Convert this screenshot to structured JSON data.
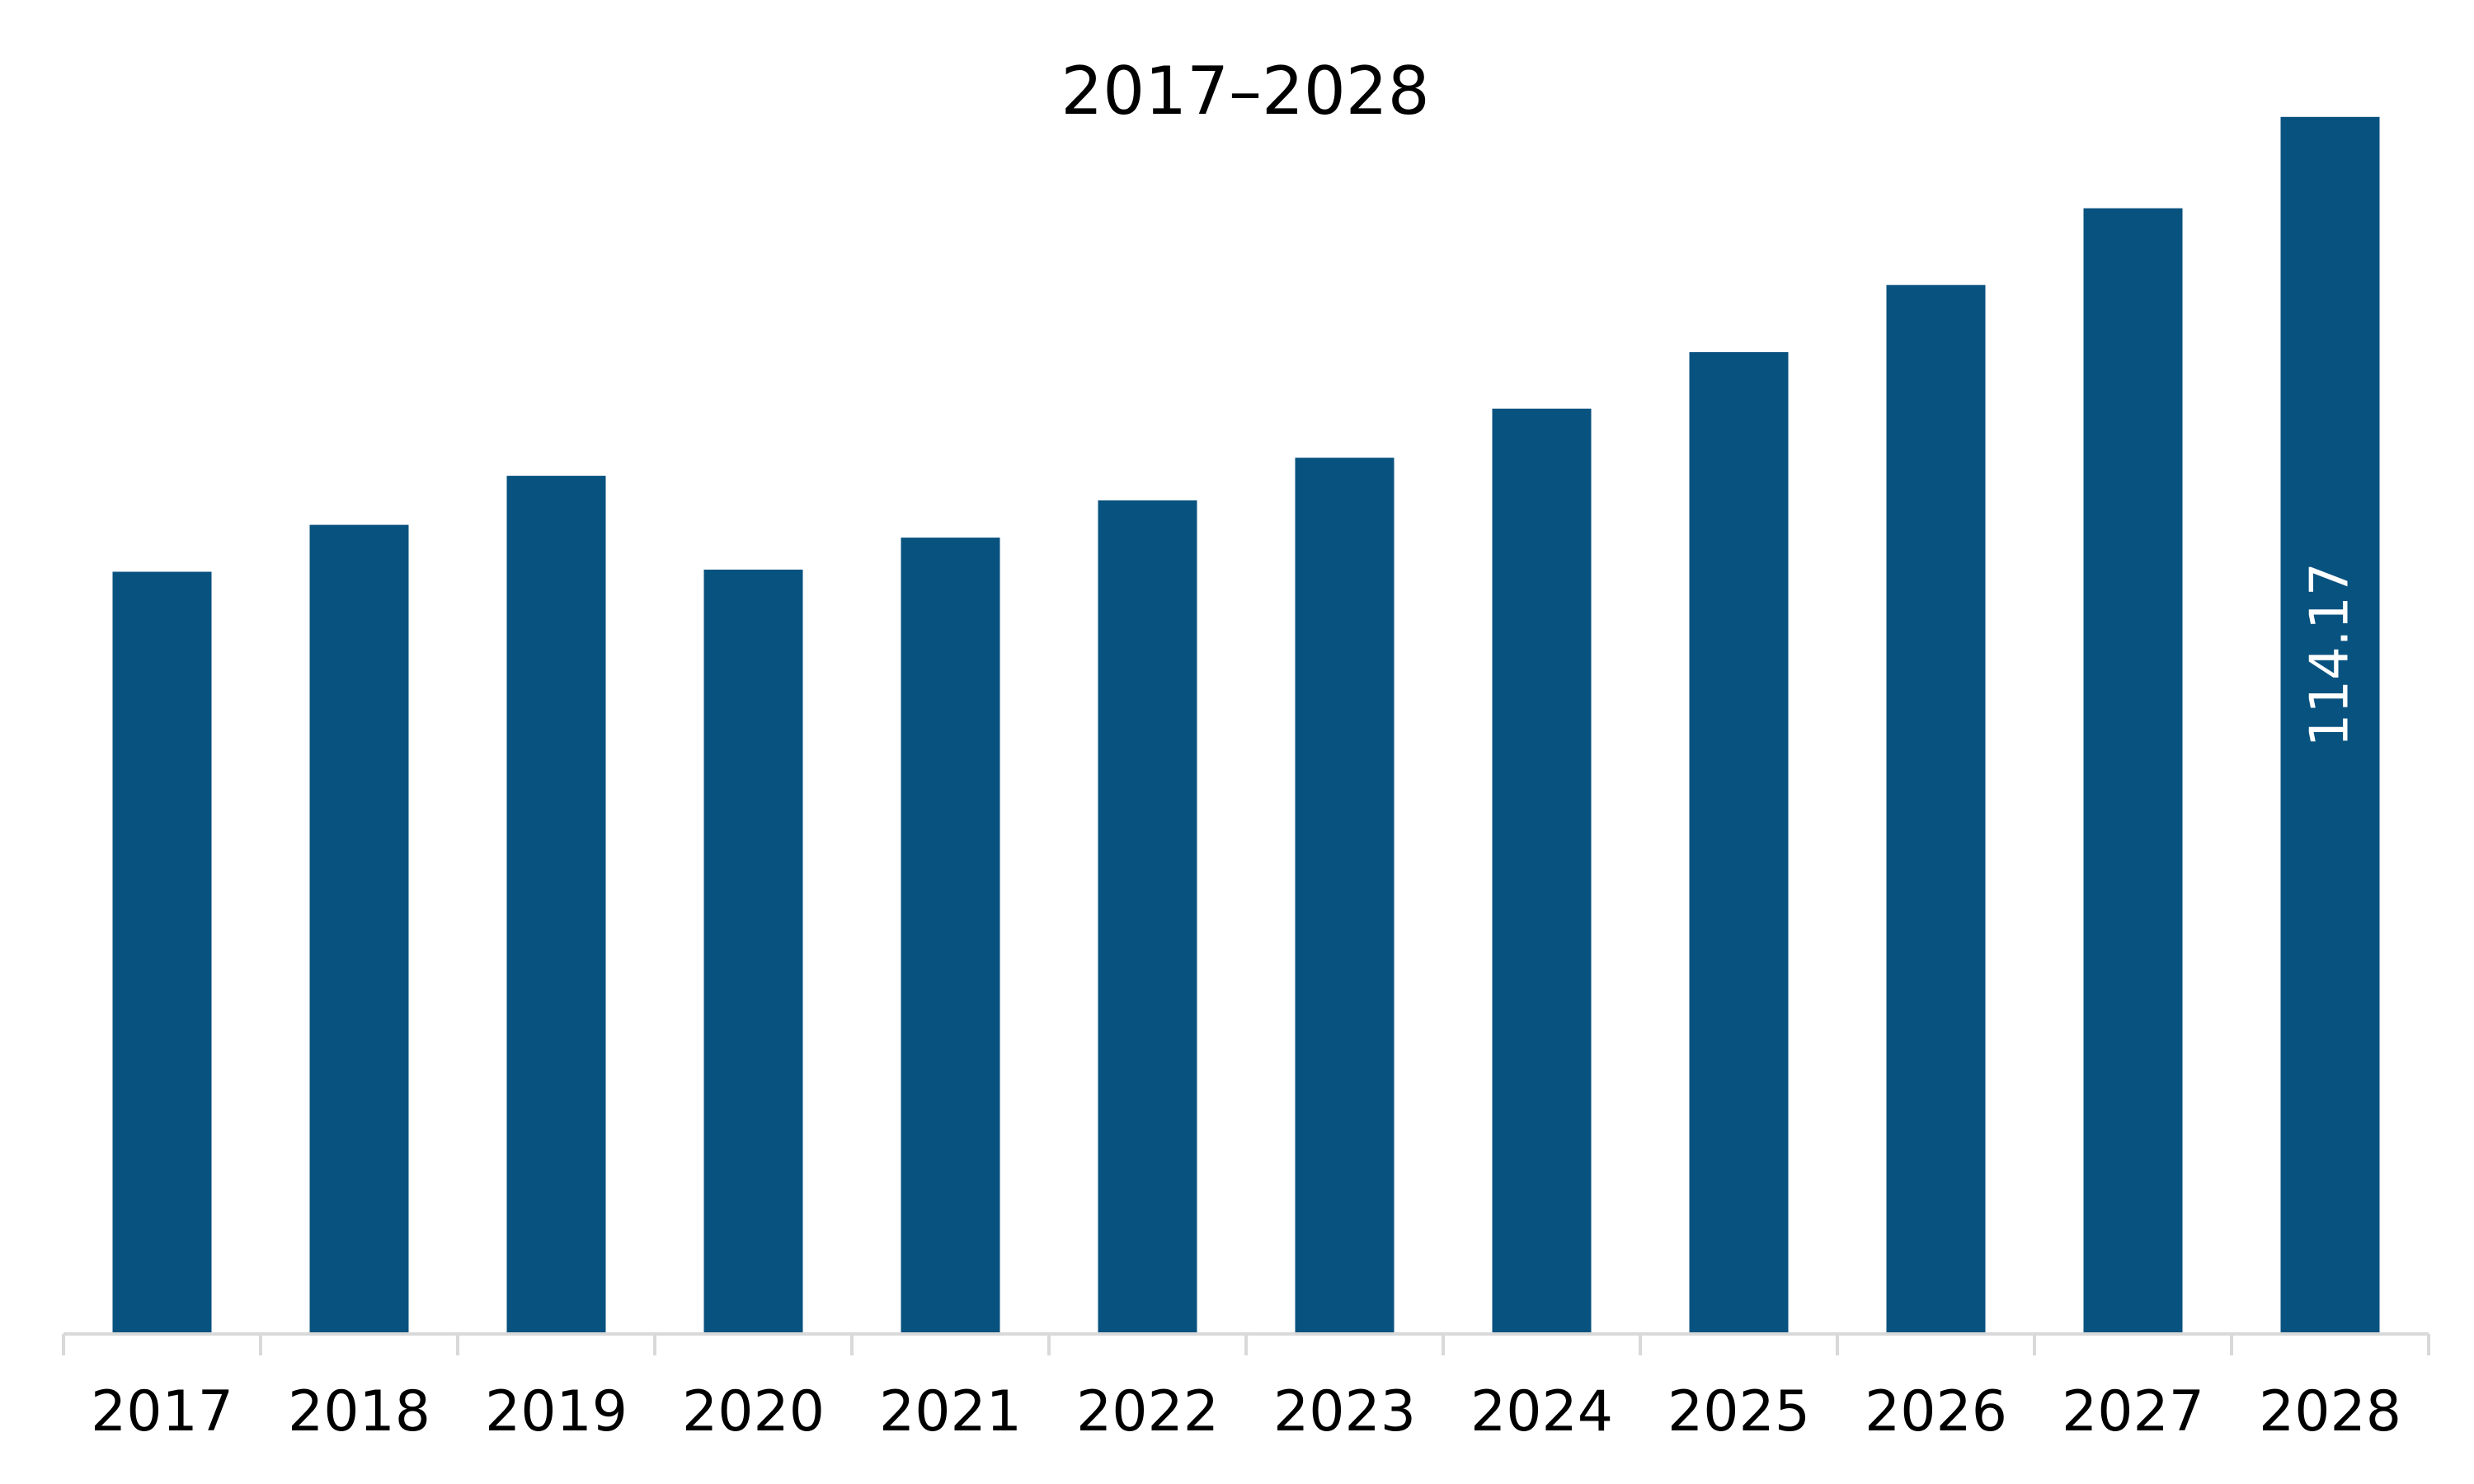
{
  "chart_data": {
    "type": "bar",
    "title": "2017–2028",
    "categories": [
      "2017",
      "2018",
      "2019",
      "2020",
      "2021",
      "2022",
      "2023",
      "2024",
      "2025",
      "2026",
      "2027",
      "2028"
    ],
    "values": [
      71.5,
      75.9,
      80.5,
      71.7,
      74.7,
      78.2,
      82.2,
      86.8,
      92.1,
      98.4,
      105.6,
      114.17
    ],
    "data_labels": [
      {
        "category": "2028",
        "text": "114.17",
        "orientation": "vertical"
      }
    ],
    "xlabel": "",
    "ylabel": "",
    "ylim": [
      0,
      120
    ],
    "grid": false,
    "legend": "none",
    "colors": {
      "bar": "#08527f",
      "axis": "#d9d9d9",
      "text": "#000000",
      "data_label": "#ffffff"
    }
  }
}
